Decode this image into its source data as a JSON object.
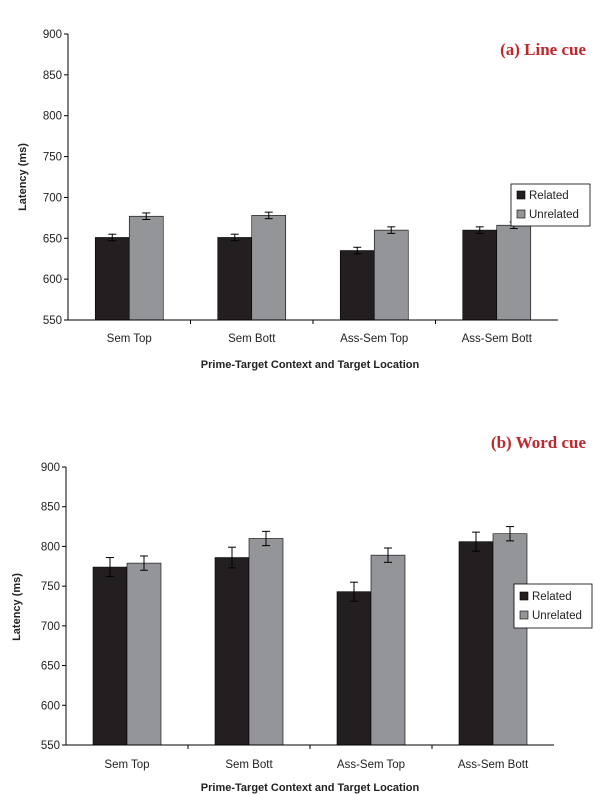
{
  "chart_data": [
    {
      "type": "bar",
      "title": "(a) Line cue",
      "xlabel": "Prime-Target Context and Target Location",
      "ylabel": "Latency (ms)",
      "ylim": [
        550,
        900
      ],
      "yticks": [
        550,
        600,
        650,
        700,
        750,
        800,
        850,
        900
      ],
      "categories": [
        "Sem Top",
        "Sem Bott",
        "Ass-Sem Top",
        "Ass-Sem Bott"
      ],
      "series": [
        {
          "name": "Related",
          "color": "#231f20",
          "values": [
            651,
            651,
            635,
            660
          ],
          "errors": [
            4,
            4,
            4,
            4
          ]
        },
        {
          "name": "Unrelated",
          "color": "#939598",
          "values": [
            677,
            678,
            660,
            666
          ],
          "errors": [
            4,
            4,
            4,
            4
          ]
        }
      ],
      "legend": "right",
      "grid": false
    },
    {
      "type": "bar",
      "title": "(b) Word cue",
      "xlabel": "Prime-Target Context and Target Location",
      "ylabel": "Latency (ms)",
      "ylim": [
        550,
        900
      ],
      "yticks": [
        550,
        600,
        650,
        700,
        750,
        800,
        850,
        900
      ],
      "categories": [
        "Sem Top",
        "Sem Bott",
        "Ass-Sem Top",
        "Ass-Sem Bott"
      ],
      "series": [
        {
          "name": "Related",
          "color": "#231f20",
          "values": [
            774,
            786,
            743,
            806
          ],
          "errors": [
            12,
            13,
            12,
            12
          ]
        },
        {
          "name": "Unrelated",
          "color": "#939598",
          "values": [
            779,
            810,
            789,
            816
          ],
          "errors": [
            9,
            9,
            9,
            9
          ]
        }
      ],
      "legend": "right",
      "grid": false
    }
  ]
}
